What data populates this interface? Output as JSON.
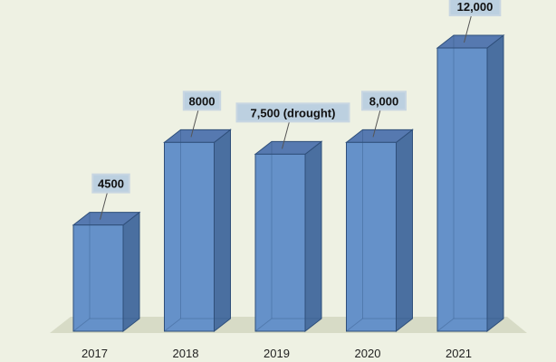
{
  "chart_data": {
    "type": "bar",
    "categories": [
      "2017",
      "2018",
      "2019",
      "2020",
      "2021"
    ],
    "values": [
      4500,
      8000,
      7500,
      8000,
      12000
    ],
    "data_labels": [
      "4500",
      "8000",
      "7,500 (drought)",
      "8,000",
      "12,000"
    ],
    "title": "",
    "xlabel": "",
    "ylabel": "",
    "ylim": [
      0,
      12000
    ],
    "grid": false,
    "legend": "none",
    "style": "3d-column"
  },
  "colors": {
    "background": "#eef1e3",
    "bar_front": "#6591c9",
    "bar_side": "#4a6fa0",
    "bar_top": "#5679b0",
    "bar_edge": "#2f4f7a",
    "floor": "#d7dbc6",
    "label_box": "#bcd0e0",
    "label_border": "#c8d6e2"
  }
}
